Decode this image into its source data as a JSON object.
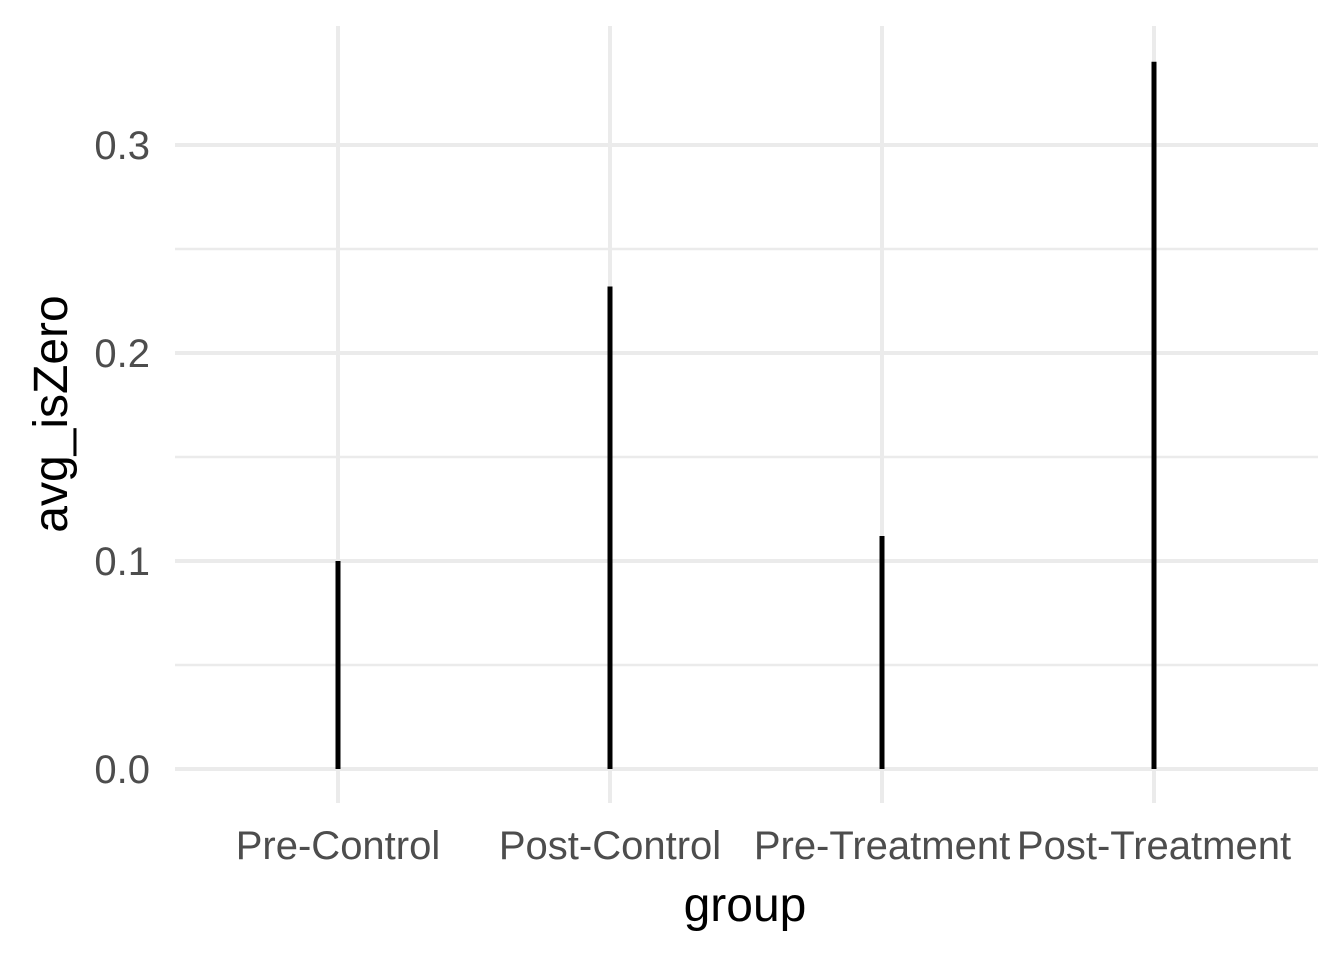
{
  "chart_data": {
    "type": "bar",
    "style": "linerange",
    "categories": [
      "Pre-Control",
      "Post-Control",
      "Pre-Treatment",
      "Post-Treatment"
    ],
    "values": [
      0.1,
      0.232,
      0.112,
      0.34
    ],
    "xlabel": "group",
    "ylabel": "avg_isZero",
    "ylim": [
      -0.017,
      0.357
    ],
    "yticks": [
      0.0,
      0.1,
      0.2,
      0.3
    ],
    "ytick_labels": [
      "0.0",
      "0.1",
      "0.2",
      "0.3"
    ],
    "y_minor_ticks": [
      0.05,
      0.15,
      0.25
    ],
    "grid": true,
    "legend": "none",
    "bar_color": "#000000",
    "grid_color": "#ebebeb"
  }
}
